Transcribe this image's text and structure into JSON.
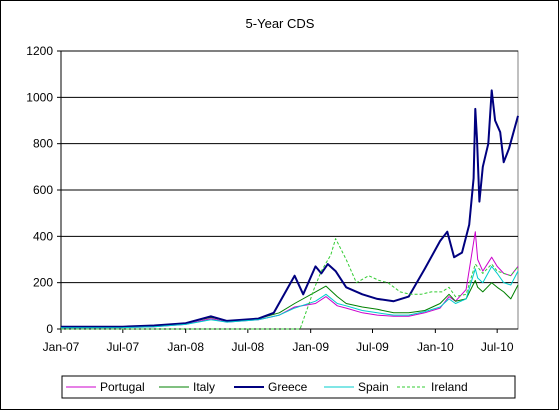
{
  "chart_data": {
    "type": "line",
    "title": "5-Year CDS",
    "xlabel": "",
    "ylabel": "",
    "ylim": [
      0,
      1200
    ],
    "yticks": [
      0,
      200,
      400,
      600,
      800,
      1000,
      1200
    ],
    "xlim": [
      "2007-01-01",
      "2010-08-31"
    ],
    "xticks": [
      {
        "date": "2007-01-01",
        "label": "Jan-07"
      },
      {
        "date": "2007-07-01",
        "label": "Jul-07"
      },
      {
        "date": "2008-01-01",
        "label": "Jan-08"
      },
      {
        "date": "2008-07-01",
        "label": "Jul-08"
      },
      {
        "date": "2009-01-01",
        "label": "Jan-09"
      },
      {
        "date": "2009-07-01",
        "label": "Jul-09"
      },
      {
        "date": "2010-01-01",
        "label": "Jan-10"
      },
      {
        "date": "2010-07-01",
        "label": "Jul-10"
      }
    ],
    "grid": "horizontal",
    "legend_position": "bottom",
    "series": [
      {
        "name": "Portugal",
        "color": "#cc00cc",
        "style": "solid",
        "points": [
          [
            "2007-01-01",
            5
          ],
          [
            "2007-07-01",
            6
          ],
          [
            "2007-10-01",
            10
          ],
          [
            "2008-01-01",
            20
          ],
          [
            "2008-03-15",
            45
          ],
          [
            "2008-05-01",
            30
          ],
          [
            "2008-08-01",
            40
          ],
          [
            "2008-10-01",
            60
          ],
          [
            "2008-11-15",
            95
          ],
          [
            "2009-01-15",
            110
          ],
          [
            "2009-02-15",
            140
          ],
          [
            "2009-03-20",
            100
          ],
          [
            "2009-04-15",
            90
          ],
          [
            "2009-06-01",
            70
          ],
          [
            "2009-07-15",
            60
          ],
          [
            "2009-09-01",
            55
          ],
          [
            "2009-10-15",
            55
          ],
          [
            "2009-12-01",
            70
          ],
          [
            "2010-01-15",
            90
          ],
          [
            "2010-02-10",
            140
          ],
          [
            "2010-03-01",
            120
          ],
          [
            "2010-04-01",
            170
          ],
          [
            "2010-04-28",
            420
          ],
          [
            "2010-05-05",
            300
          ],
          [
            "2010-05-20",
            250
          ],
          [
            "2010-06-15",
            310
          ],
          [
            "2010-07-01",
            270
          ],
          [
            "2010-07-20",
            240
          ],
          [
            "2010-08-10",
            230
          ],
          [
            "2010-08-31",
            270
          ]
        ]
      },
      {
        "name": "Italy",
        "color": "#008000",
        "style": "solid",
        "points": [
          [
            "2007-01-01",
            8
          ],
          [
            "2007-07-01",
            8
          ],
          [
            "2007-10-01",
            12
          ],
          [
            "2008-01-01",
            25
          ],
          [
            "2008-03-15",
            50
          ],
          [
            "2008-05-01",
            35
          ],
          [
            "2008-08-01",
            45
          ],
          [
            "2008-10-01",
            70
          ],
          [
            "2008-11-15",
            110
          ],
          [
            "2009-01-15",
            160
          ],
          [
            "2009-02-15",
            185
          ],
          [
            "2009-03-20",
            140
          ],
          [
            "2009-04-15",
            110
          ],
          [
            "2009-06-01",
            95
          ],
          [
            "2009-07-15",
            85
          ],
          [
            "2009-09-01",
            70
          ],
          [
            "2009-10-15",
            70
          ],
          [
            "2009-12-01",
            80
          ],
          [
            "2010-01-15",
            110
          ],
          [
            "2010-02-10",
            150
          ],
          [
            "2010-03-01",
            120
          ],
          [
            "2010-04-01",
            130
          ],
          [
            "2010-04-28",
            210
          ],
          [
            "2010-05-05",
            180
          ],
          [
            "2010-05-20",
            160
          ],
          [
            "2010-06-15",
            200
          ],
          [
            "2010-07-01",
            180
          ],
          [
            "2010-07-20",
            160
          ],
          [
            "2010-08-10",
            130
          ],
          [
            "2010-08-31",
            190
          ]
        ]
      },
      {
        "name": "Greece",
        "color": "#00007f",
        "style": "solid",
        "points": [
          [
            "2007-01-01",
            10
          ],
          [
            "2007-07-01",
            10
          ],
          [
            "2007-10-01",
            15
          ],
          [
            "2008-01-01",
            25
          ],
          [
            "2008-03-15",
            55
          ],
          [
            "2008-05-01",
            35
          ],
          [
            "2008-08-01",
            45
          ],
          [
            "2008-09-15",
            70
          ],
          [
            "2008-11-15",
            230
          ],
          [
            "2008-12-10",
            150
          ],
          [
            "2009-01-15",
            270
          ],
          [
            "2009-02-01",
            240
          ],
          [
            "2009-02-20",
            280
          ],
          [
            "2009-03-15",
            250
          ],
          [
            "2009-04-15",
            180
          ],
          [
            "2009-06-01",
            150
          ],
          [
            "2009-07-15",
            130
          ],
          [
            "2009-09-01",
            120
          ],
          [
            "2009-10-15",
            140
          ],
          [
            "2009-12-01",
            260
          ],
          [
            "2010-01-15",
            380
          ],
          [
            "2010-02-05",
            420
          ],
          [
            "2010-02-25",
            310
          ],
          [
            "2010-03-20",
            330
          ],
          [
            "2010-04-10",
            450
          ],
          [
            "2010-04-23",
            650
          ],
          [
            "2010-04-28",
            950
          ],
          [
            "2010-05-03",
            820
          ],
          [
            "2010-05-10",
            550
          ],
          [
            "2010-05-20",
            700
          ],
          [
            "2010-06-05",
            800
          ],
          [
            "2010-06-15",
            1030
          ],
          [
            "2010-06-25",
            900
          ],
          [
            "2010-07-10",
            850
          ],
          [
            "2010-07-20",
            720
          ],
          [
            "2010-08-05",
            780
          ],
          [
            "2010-08-31",
            920
          ]
        ]
      },
      {
        "name": "Spain",
        "color": "#00cccc",
        "style": "solid",
        "points": [
          [
            "2007-01-01",
            5
          ],
          [
            "2007-07-01",
            6
          ],
          [
            "2007-10-01",
            10
          ],
          [
            "2008-01-01",
            20
          ],
          [
            "2008-03-15",
            40
          ],
          [
            "2008-05-01",
            30
          ],
          [
            "2008-08-01",
            40
          ],
          [
            "2008-10-01",
            60
          ],
          [
            "2008-11-15",
            90
          ],
          [
            "2009-01-15",
            120
          ],
          [
            "2009-02-15",
            150
          ],
          [
            "2009-03-20",
            110
          ],
          [
            "2009-04-15",
            100
          ],
          [
            "2009-06-01",
            80
          ],
          [
            "2009-07-15",
            70
          ],
          [
            "2009-09-01",
            60
          ],
          [
            "2009-10-15",
            60
          ],
          [
            "2009-12-01",
            75
          ],
          [
            "2010-01-15",
            95
          ],
          [
            "2010-02-10",
            130
          ],
          [
            "2010-03-01",
            110
          ],
          [
            "2010-04-01",
            130
          ],
          [
            "2010-04-28",
            260
          ],
          [
            "2010-05-05",
            220
          ],
          [
            "2010-05-20",
            200
          ],
          [
            "2010-06-15",
            270
          ],
          [
            "2010-07-01",
            240
          ],
          [
            "2010-07-20",
            200
          ],
          [
            "2010-08-10",
            190
          ],
          [
            "2010-08-31",
            250
          ]
        ]
      },
      {
        "name": "Ireland",
        "color": "#33cc33",
        "style": "dotted",
        "points": [
          [
            "2007-01-01",
            0
          ],
          [
            "2007-07-01",
            0
          ],
          [
            "2008-01-01",
            0
          ],
          [
            "2008-07-01",
            0
          ],
          [
            "2008-12-01",
            0
          ],
          [
            "2008-12-25",
            100
          ],
          [
            "2009-01-10",
            170
          ],
          [
            "2009-02-01",
            250
          ],
          [
            "2009-03-01",
            320
          ],
          [
            "2009-03-15",
            390
          ],
          [
            "2009-04-15",
            300
          ],
          [
            "2009-05-15",
            200
          ],
          [
            "2009-06-20",
            230
          ],
          [
            "2009-07-20",
            210
          ],
          [
            "2009-08-15",
            200
          ],
          [
            "2009-09-20",
            160
          ],
          [
            "2009-10-20",
            150
          ],
          [
            "2009-11-20",
            150
          ],
          [
            "2009-12-20",
            160
          ],
          [
            "2010-01-20",
            160
          ],
          [
            "2010-02-10",
            180
          ],
          [
            "2010-03-01",
            140
          ],
          [
            "2010-04-01",
            150
          ],
          [
            "2010-04-28",
            280
          ],
          [
            "2010-05-20",
            240
          ],
          [
            "2010-06-15",
            280
          ],
          [
            "2010-07-01",
            250
          ],
          [
            "2010-08-10",
            230
          ],
          [
            "2010-08-31",
            270
          ]
        ]
      }
    ]
  }
}
